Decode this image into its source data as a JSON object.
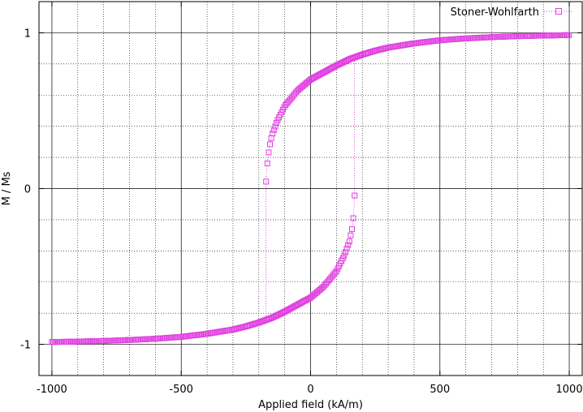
{
  "chart_data": {
    "type": "scatter",
    "title": "",
    "xlabel": "Applied field (kA/m)",
    "ylabel": "M / Ms",
    "xlim": [
      -1050,
      1050
    ],
    "ylim": [
      -1.2,
      1.2
    ],
    "xticks": [
      -1000,
      -500,
      0,
      500,
      1000
    ],
    "yticks": [
      -1,
      0,
      1
    ],
    "xtick_labels": [
      "-1000",
      "-500",
      "0",
      "500",
      "1000"
    ],
    "ytick_labels": [
      "-1",
      "0",
      "1"
    ],
    "x_minor_step": 100,
    "y_minor_step": 0.2,
    "grid": true,
    "legend": {
      "position": "top-right"
    },
    "series": [
      {
        "name": "Stoner-Wohlfarth",
        "color": "#e040e0",
        "marker": "open-square",
        "line": "dotted",
        "note_shape": "hysteresis loop: descending branch then ascending branch",
        "branches": [
          {
            "direction": "descending",
            "x": [
              1000,
              900,
              800,
              700,
              600,
              500,
              400,
              300,
              250,
              200,
              150,
              100,
              50,
              0,
              -50,
              -100,
              -130,
              -150,
              -160,
              -165,
              -170,
              -172
            ],
            "y": [
              0.985,
              0.982,
              0.978,
              0.972,
              0.964,
              0.952,
              0.932,
              0.905,
              0.885,
              0.86,
              0.83,
              0.79,
              0.745,
              0.7,
              0.63,
              0.53,
              0.43,
              0.34,
              0.26,
              0.19,
              0.12,
              0.045
            ]
          },
          {
            "direction": "ascending",
            "x": [
              -1000,
              -900,
              -800,
              -700,
              -600,
              -500,
              -400,
              -300,
              -250,
              -200,
              -150,
              -100,
              -50,
              0,
              50,
              100,
              130,
              150,
              160,
              165,
              168,
              170
            ],
            "y": [
              -0.985,
              -0.982,
              -0.978,
              -0.972,
              -0.964,
              -0.952,
              -0.932,
              -0.905,
              -0.885,
              -0.86,
              -0.83,
              -0.79,
              -0.745,
              -0.7,
              -0.63,
              -0.53,
              -0.43,
              -0.34,
              -0.26,
              -0.19,
              -0.13,
              -0.045
            ]
          }
        ]
      }
    ]
  }
}
